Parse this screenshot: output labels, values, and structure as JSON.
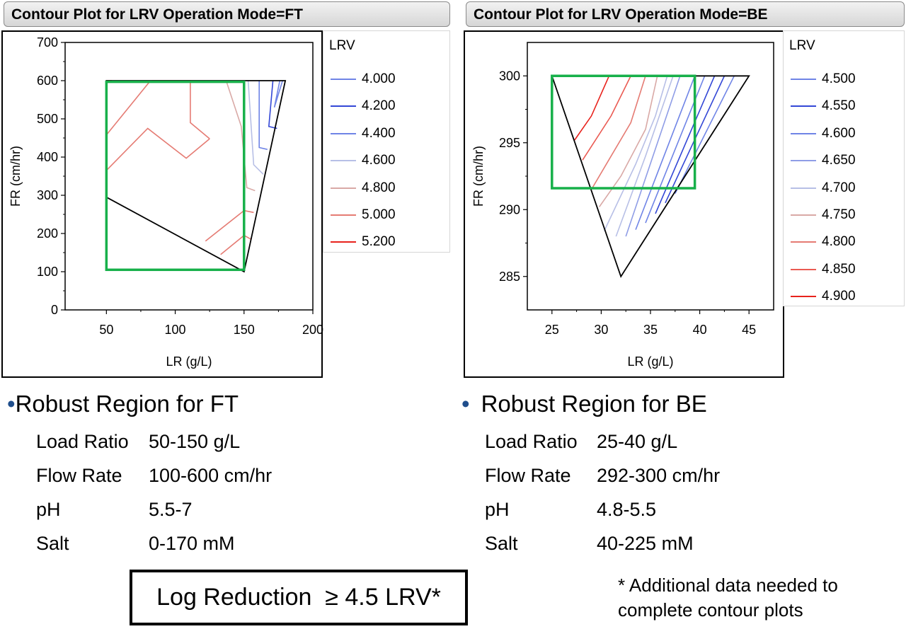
{
  "colors": {
    "robust_region": "#17b04a",
    "boundary": "#000000",
    "bullet": "#1f4e8c"
  },
  "panels": [
    {
      "header": "Contour Plot for LRV Operation Mode=FT",
      "chart_data": {
        "type": "contour",
        "xlabel": "LR (g/L)",
        "ylabel": "FR (cm/hr)",
        "xlim": [
          20,
          200
        ],
        "ylim": [
          0,
          700
        ],
        "x_ticks": [
          "50",
          "100",
          "150",
          "200"
        ],
        "y_ticks": [
          "0",
          "100",
          "200",
          "300",
          "400",
          "500",
          "600",
          "700"
        ],
        "legend_title": "LRV",
        "levels": [
          {
            "label": "4.000",
            "color": "#6f84e6"
          },
          {
            "label": "4.200",
            "color": "#3347d6"
          },
          {
            "label": "4.400",
            "color": "#6f84e6"
          },
          {
            "label": "4.600",
            "color": "#b7bfe6"
          },
          {
            "label": "4.800",
            "color": "#d9a9a6"
          },
          {
            "label": "5.000",
            "color": "#e57b73"
          },
          {
            "label": "5.200",
            "color": "#e8221c"
          }
        ],
        "boundary": [
          [
            50,
            600
          ],
          [
            180,
            600
          ],
          [
            150,
            100
          ],
          [
            50,
            295
          ]
        ],
        "robust_region": {
          "x": [
            50,
            150
          ],
          "y": [
            105,
            597
          ]
        },
        "contours": [
          {
            "color": "#6f84e6",
            "points": [
              [
                176,
                600
              ],
              [
                172,
                530
              ],
              [
                178,
                600
              ]
            ]
          },
          {
            "color": "#3347d6",
            "points": [
              [
                171,
                600
              ],
              [
                168,
                480
              ],
              [
                174,
                475
              ]
            ]
          },
          {
            "color": "#6f84e6",
            "points": [
              [
                161,
                600
              ],
              [
                161,
                425
              ],
              [
                167,
                420
              ]
            ]
          },
          {
            "color": "#b7bfe6",
            "points": [
              [
                153,
                600
              ],
              [
                157,
                380
              ],
              [
                164,
                355
              ]
            ]
          },
          {
            "color": "#d9a9a6",
            "points": [
              [
                137,
                600
              ],
              [
                148,
                480
              ],
              [
                152,
                320
              ],
              [
                158,
                312
              ]
            ]
          },
          {
            "color": "#e57b73",
            "points": [
              [
                50,
                365
              ],
              [
                80,
                475
              ],
              [
                108,
                397
              ],
              [
                125,
                448
              ]
            ]
          },
          {
            "color": "#e57b73",
            "points": [
              [
                50,
                458
              ],
              [
                82,
                600
              ]
            ]
          },
          {
            "color": "#e8221c",
            "points": [
              [
                50,
                600
              ],
              [
                54,
                600
              ]
            ]
          },
          {
            "color": "#e57b73",
            "points": [
              [
                83,
                600
              ],
              [
                111,
                600
              ],
              [
                111,
                490
              ],
              [
                125,
                448
              ]
            ]
          },
          {
            "color": "#e57b73",
            "points": [
              [
                122,
                180
              ],
              [
                150,
                260
              ],
              [
                157,
                255
              ]
            ]
          },
          {
            "color": "#e57b73",
            "points": [
              [
                133,
                145
              ],
              [
                150,
                195
              ],
              [
                155,
                185
              ]
            ]
          }
        ]
      }
    },
    {
      "header": "Contour Plot for LRV Operation Mode=BE",
      "chart_data": {
        "type": "contour",
        "xlabel": "LR (g/L)",
        "ylabel": "FR (cm/hr)",
        "xlim": [
          22.5,
          47.5
        ],
        "ylim": [
          282.5,
          302.5
        ],
        "x_ticks": [
          "25",
          "30",
          "35",
          "40",
          "45"
        ],
        "y_ticks": [
          "285",
          "290",
          "295",
          "300"
        ],
        "legend_title": "LRV",
        "levels": [
          {
            "label": "4.500",
            "color": "#6f84e6"
          },
          {
            "label": "4.550",
            "color": "#3347d6"
          },
          {
            "label": "4.600",
            "color": "#6f84e6"
          },
          {
            "label": "4.650",
            "color": "#8f9de6"
          },
          {
            "label": "4.700",
            "color": "#b7bfe6"
          },
          {
            "label": "4.750",
            "color": "#d9a9a6"
          },
          {
            "label": "4.800",
            "color": "#e57b73"
          },
          {
            "label": "4.850",
            "color": "#ea5a52"
          },
          {
            "label": "4.900",
            "color": "#e8221c"
          }
        ],
        "boundary": [
          [
            25,
            300
          ],
          [
            45,
            300
          ],
          [
            32,
            285
          ]
        ],
        "robust_region": {
          "x": [
            25,
            39.5
          ],
          "y": [
            291.6,
            300
          ]
        },
        "contours": [
          {
            "color": "#e8221c",
            "points": [
              [
                27.3,
                295.2
              ],
              [
                29,
                297
              ],
              [
                30.8,
                300
              ]
            ]
          },
          {
            "color": "#ea5a52",
            "points": [
              [
                28.1,
                293.7
              ],
              [
                31,
                297
              ],
              [
                33,
                300
              ]
            ]
          },
          {
            "color": "#e57b73",
            "points": [
              [
                29,
                291.5
              ],
              [
                31,
                294
              ],
              [
                33,
                296.5
              ],
              [
                34.5,
                300
              ]
            ]
          },
          {
            "color": "#d9a9a6",
            "points": [
              [
                29.8,
                290.2
              ],
              [
                32,
                292.5
              ],
              [
                34.5,
                296
              ],
              [
                35.7,
                300
              ]
            ]
          },
          {
            "color": "#b7bfe6",
            "points": [
              [
                30.3,
                288.4
              ],
              [
                33.5,
                293.4
              ],
              [
                35.5,
                297
              ],
              [
                36.7,
                300
              ]
            ]
          },
          {
            "color": "#b7bfe6",
            "points": [
              [
                31.5,
                288
              ],
              [
                34.5,
                294
              ],
              [
                37.3,
                300
              ]
            ]
          },
          {
            "color": "#8f9de6",
            "points": [
              [
                32.5,
                288
              ],
              [
                38,
                300
              ]
            ]
          },
          {
            "color": "#6f84e6",
            "points": [
              [
                33.5,
                288.5
              ],
              [
                39.5,
                300
              ]
            ]
          },
          {
            "color": "#6f84e6",
            "points": [
              [
                34.5,
                289
              ],
              [
                40.5,
                300
              ]
            ]
          },
          {
            "color": "#3347d6",
            "points": [
              [
                35.5,
                289.7
              ],
              [
                41.5,
                300
              ]
            ]
          },
          {
            "color": "#3347d6",
            "points": [
              [
                36.5,
                290.5
              ],
              [
                42.5,
                300
              ]
            ]
          },
          {
            "color": "#6f84e6",
            "points": [
              [
                37.5,
                291.2
              ],
              [
                43.5,
                300
              ]
            ]
          }
        ]
      }
    }
  ],
  "left_summary": {
    "bullet": "•",
    "title": "Robust Region for FT",
    "rows": [
      {
        "label": "Load Ratio",
        "value": "50-150 g/L"
      },
      {
        "label": "Flow Rate",
        "value": "100-600 cm/hr"
      },
      {
        "label": "pH",
        "value": "5.5-7"
      },
      {
        "label": "Salt",
        "value": "0-170 mM"
      }
    ]
  },
  "right_summary": {
    "bullet": "•",
    "title": "Robust Region for BE",
    "rows": [
      {
        "label": "Load Ratio",
        "value": "25-40 g/L"
      },
      {
        "label": "Flow Rate",
        "value": "292-300 cm/hr"
      },
      {
        "label": "pH",
        "value": "4.8-5.5"
      },
      {
        "label": "Salt",
        "value": "40-225 mM"
      }
    ]
  },
  "lrv_box": "Log Reduction  ≥ 4.5 LRV*",
  "note": {
    "line1": "* Additional data needed to",
    "line2": "complete contour plots"
  }
}
